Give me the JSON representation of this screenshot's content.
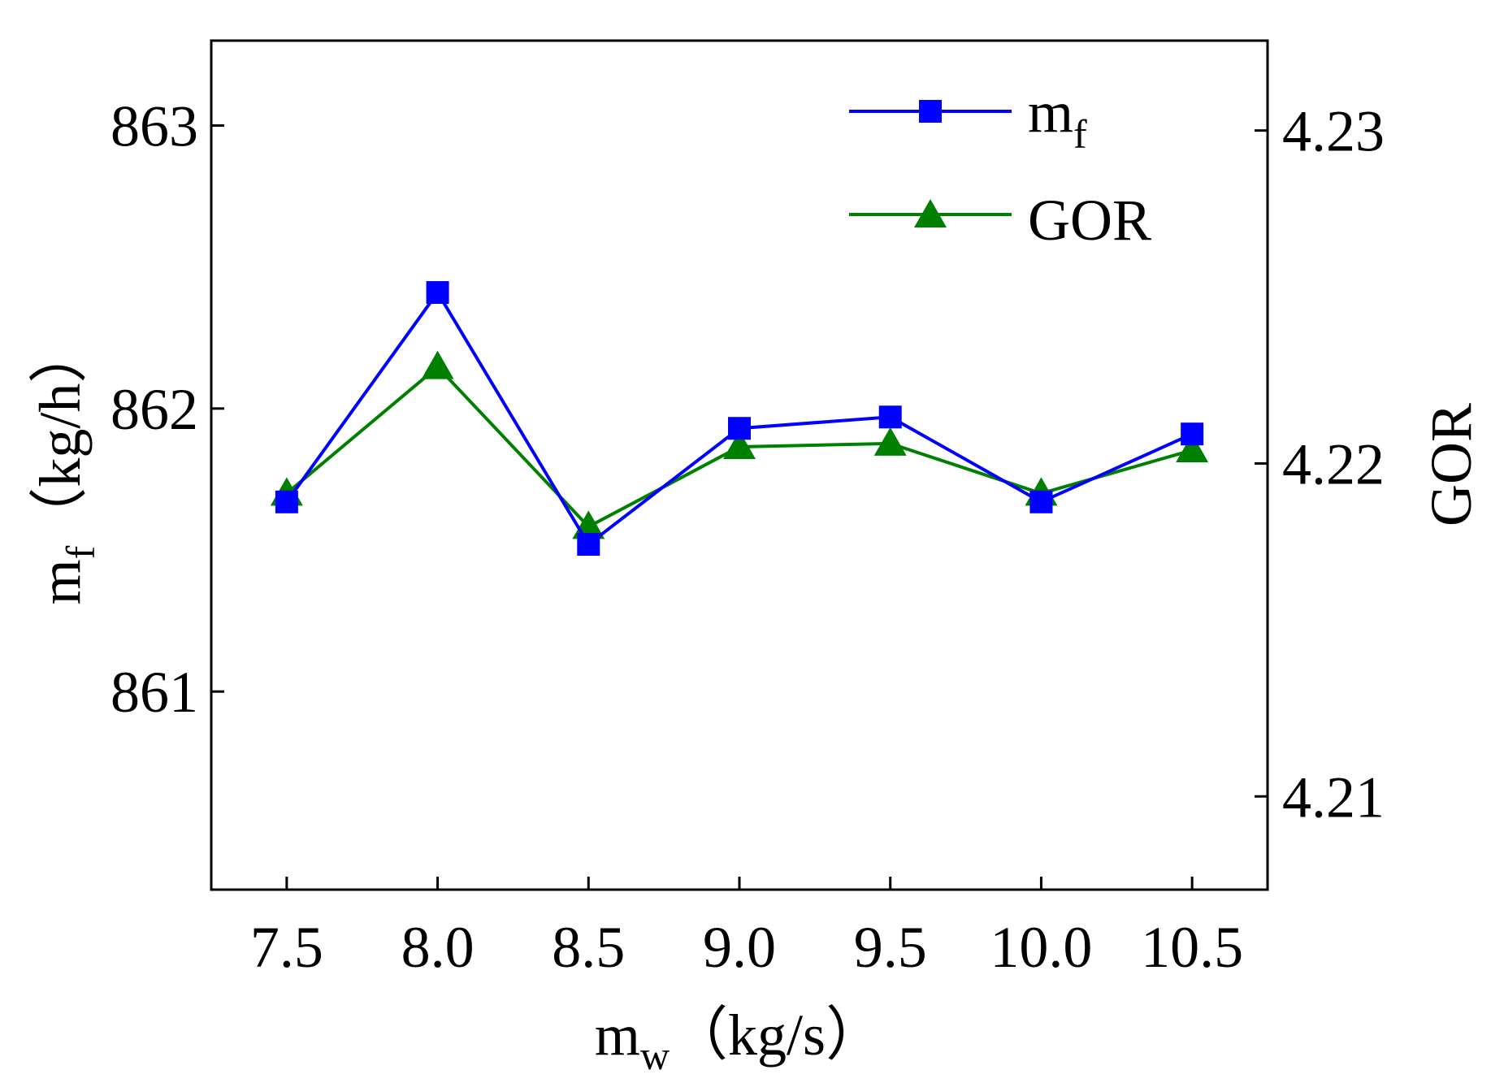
{
  "chart_data": {
    "type": "line",
    "x": [
      7.5,
      8.0,
      8.5,
      9.0,
      9.5,
      10.0,
      10.5
    ],
    "x_tick_labels": [
      "7.5",
      "8.0",
      "8.5",
      "9.0",
      "9.5",
      "10.0",
      "10.5"
    ],
    "xlim": [
      7.25,
      10.75
    ],
    "xlabel": {
      "main": "m",
      "sub": "w",
      "unit": "（kg/s）"
    },
    "y_left": {
      "label": {
        "main": "m",
        "sub": "f",
        "unit": "（kg/h）"
      },
      "ylim": [
        860.3,
        863.3
      ],
      "ticks": [
        861,
        862,
        863
      ],
      "tick_labels": [
        "861",
        "862",
        "863"
      ]
    },
    "y_right": {
      "label": "GOR",
      "ylim": [
        4.2072,
        4.2327
      ],
      "ticks": [
        4.21,
        4.22,
        4.23
      ],
      "tick_labels": [
        "4.21",
        "4.22",
        "4.23"
      ]
    },
    "series": [
      {
        "name": "m",
        "name_sub": "f",
        "axis": "left",
        "color": "#0000ff",
        "marker": "square",
        "values": [
          861.67,
          862.41,
          861.52,
          861.93,
          861.97,
          861.67,
          861.91
        ]
      },
      {
        "name": "GOR",
        "axis": "right",
        "color": "#008000",
        "marker": "triangle",
        "values": [
          4.2191,
          4.2229,
          4.2181,
          4.2205,
          4.2206,
          4.2191,
          4.2204
        ]
      }
    ],
    "legend_position": "top-right",
    "grid": false
  }
}
